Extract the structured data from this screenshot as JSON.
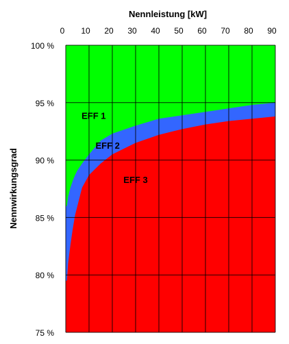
{
  "chart_data": {
    "type": "area",
    "xlabel": "Nennleistung [kW]",
    "ylabel": "Nennwirkungsgrad",
    "x_ticks": [
      "0",
      "10",
      "20",
      "30",
      "40",
      "50",
      "60",
      "70",
      "80",
      "90"
    ],
    "y_ticks": [
      "100 %",
      "95 %",
      "90 %",
      "85 %",
      "80 %",
      "75 %"
    ],
    "xlim": [
      0,
      90
    ],
    "ylim": [
      75,
      100
    ],
    "x_axis_position": "top",
    "grid": true,
    "colors": {
      "eff1": "#00ff00",
      "eff2": "#3366ff",
      "eff3": "#ff0000",
      "grid": "#000000"
    },
    "series": [
      {
        "name": "EFF 1",
        "description_from_chart": "region above EFF 2 boundary"
      },
      {
        "name": "EFF 2",
        "x": [
          0.5,
          1,
          2,
          3,
          4,
          5,
          7,
          10,
          15,
          20,
          30,
          40,
          50,
          60,
          70,
          80,
          90
        ],
        "values": [
          86.0,
          86.8,
          87.6,
          88.2,
          88.7,
          89.1,
          89.7,
          90.5,
          91.7,
          92.3,
          93.0,
          93.6,
          93.9,
          94.2,
          94.5,
          94.8,
          95.0
        ]
      },
      {
        "name": "EFF 3",
        "x": [
          0.5,
          1,
          2,
          3,
          4,
          5,
          7,
          10,
          15,
          20,
          30,
          40,
          50,
          60,
          70,
          80,
          90
        ],
        "values": [
          79.5,
          81.0,
          82.6,
          84.0,
          85.2,
          86.0,
          87.6,
          88.7,
          89.7,
          90.5,
          91.5,
          92.2,
          92.7,
          93.1,
          93.4,
          93.6,
          93.8
        ]
      }
    ],
    "region_labels": [
      {
        "text": "EFF 1",
        "x": 12,
        "y": 93.6
      },
      {
        "text": "EFF 2",
        "x": 18,
        "y": 91.0
      },
      {
        "text": "EFF 3",
        "x": 30,
        "y": 88.0
      }
    ]
  }
}
